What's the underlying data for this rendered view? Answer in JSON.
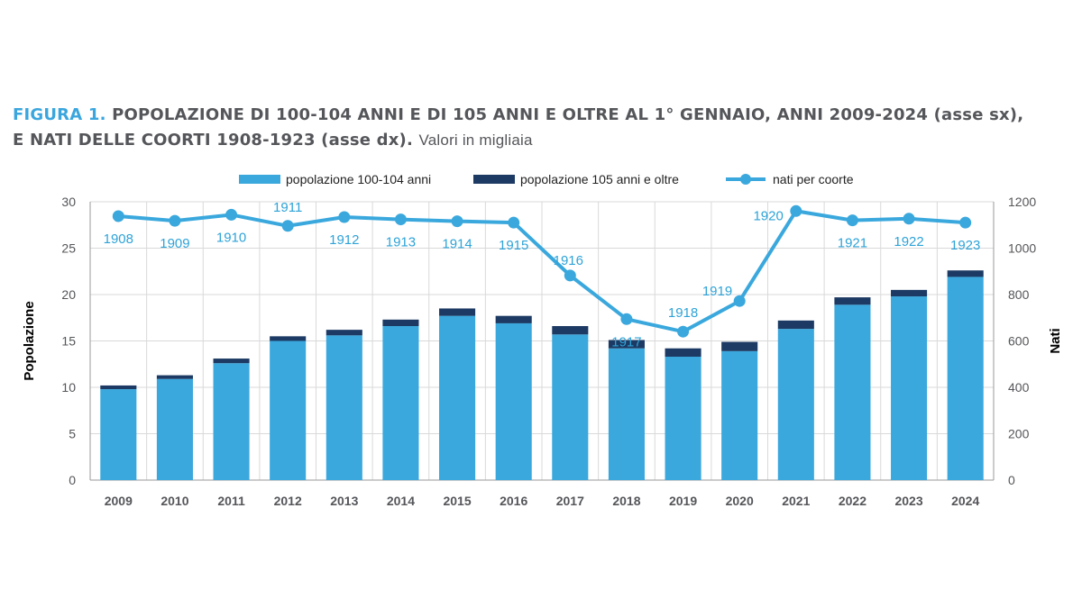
{
  "title": {
    "figure_label": "FIGURA 1.",
    "line1_rest": "POPOLAZIONE DI 100-104 ANNI E DI 105 ANNI E OLTRE AL 1° GENNAIO, ANNI 2009-2024 (asse sx),",
    "line2": "E NATI DELLE COORTI 1908-1923 (asse dx).",
    "units": "Valori in migliaia"
  },
  "colors": {
    "bar_main": "#3aa8dd",
    "bar_top": "#1c3a63",
    "line": "#3aa8dd",
    "grid": "#d9d9d9"
  },
  "chart_data": {
    "type": "bar",
    "categories": [
      "2009",
      "2010",
      "2011",
      "2012",
      "2013",
      "2014",
      "2015",
      "2016",
      "2017",
      "2018",
      "2019",
      "2020",
      "2021",
      "2022",
      "2023",
      "2024"
    ],
    "series": [
      {
        "name": "popolazione 100-104 anni",
        "type": "bar",
        "axis": "left",
        "stack": "pop",
        "values": [
          9.8,
          10.9,
          12.6,
          15.0,
          15.6,
          16.6,
          17.7,
          16.9,
          15.7,
          14.2,
          13.3,
          13.9,
          16.3,
          18.9,
          19.8,
          21.9
        ]
      },
      {
        "name": "popolazione 105 anni e oltre",
        "type": "bar",
        "axis": "left",
        "stack": "pop",
        "values": [
          0.4,
          0.4,
          0.5,
          0.5,
          0.6,
          0.7,
          0.8,
          0.8,
          0.9,
          0.9,
          0.9,
          1.0,
          0.9,
          0.8,
          0.7,
          0.7
        ]
      },
      {
        "name": "nati per coorte",
        "type": "line",
        "axis": "right",
        "values": [
          1138,
          1118,
          1144,
          1096,
          1134,
          1124,
          1116,
          1110,
          882,
          694,
          640,
          772,
          1160,
          1120,
          1127,
          1110
        ],
        "point_labels": [
          "1908",
          "1909",
          "1910",
          "1911",
          "1912",
          "1913",
          "1914",
          "1915",
          "1916",
          "1917",
          "1918",
          "1919",
          "1920",
          "1921",
          "1922",
          "1923"
        ]
      }
    ],
    "y_left": {
      "label": "Popolazione",
      "range": [
        0,
        30
      ],
      "ticks": [
        0,
        5,
        10,
        15,
        20,
        25,
        30
      ]
    },
    "y_right": {
      "label": "Nati",
      "range": [
        0,
        1200
      ],
      "ticks": [
        0,
        200,
        400,
        600,
        800,
        1000,
        1200
      ]
    },
    "grid": true,
    "legend_position": "top"
  }
}
